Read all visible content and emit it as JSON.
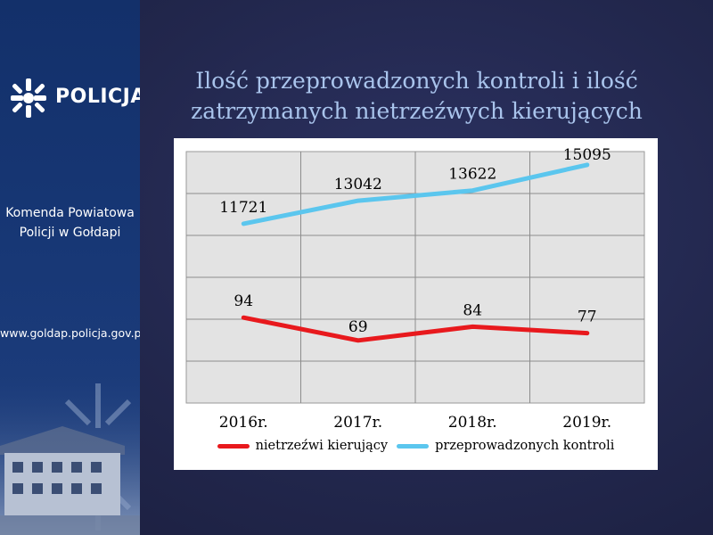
{
  "sidebar": {
    "logo_text": "POLICJA",
    "unit_name_line1": "Komenda Powiatowa",
    "unit_name_line2": "Policji w Gołdapi",
    "website": "www.goldap.policja.gov.pl"
  },
  "icons": {
    "logo": "police-star-icon",
    "photo": "building-photo"
  },
  "colors": {
    "sidebar": "#173775",
    "title": "#a9c4ec",
    "series_red": "#e8191d",
    "series_blue": "#5bc6ee",
    "plot_bg": "#e3e3e3"
  },
  "chart_data": {
    "type": "line",
    "title_line1": "Ilość przeprowadzonych kontroli i ilość",
    "title_line2": "zatrzymanych nietrzeźwych kierujących",
    "categories": [
      "2016r.",
      "2017r.",
      "2018r.",
      "2019r."
    ],
    "series": [
      {
        "name": "nietrzeźwi kierujący",
        "values": [
          94,
          69,
          84,
          77
        ],
        "color": "#e8191d",
        "labels": [
          "94",
          "69",
          "84",
          "77"
        ]
      },
      {
        "name": "przeprowadzonych kontroli",
        "values": [
          11721,
          13042,
          13622,
          15095
        ],
        "color": "#5bc6ee",
        "labels": [
          "11721",
          "13042",
          "13622",
          "15095"
        ]
      }
    ],
    "grid": true,
    "legend": "bottom"
  }
}
